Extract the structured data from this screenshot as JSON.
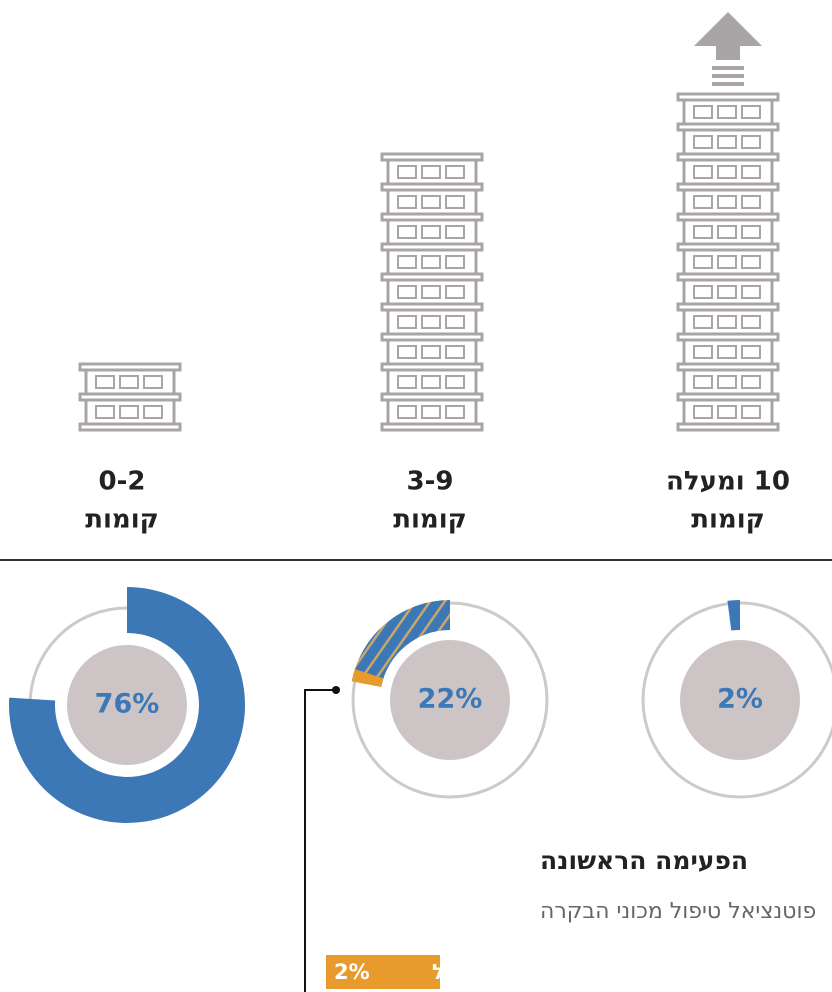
{
  "chart_data": [
    {
      "type": "donut",
      "title": "10 ומעלה",
      "subtitle": "קומות",
      "values": [
        2
      ],
      "value_labels": [
        "2%"
      ],
      "color": "#3b78b5",
      "direction": "ccw"
    },
    {
      "type": "donut",
      "title": "3-9",
      "subtitle": "קומות",
      "values": [
        22
      ],
      "value_labels": [
        "22%"
      ],
      "color": "#3b78b5",
      "pattern": "striped",
      "direction": "ccw",
      "overlay": {
        "name": "בפועל",
        "values": [
          2
        ],
        "value_labels": [
          "2%"
        ],
        "color": "#e89a2c"
      }
    },
    {
      "type": "donut",
      "title": "0-2",
      "subtitle": "קומות",
      "values": [
        76
      ],
      "value_labels": [
        "76%"
      ],
      "color": "#3b78b5",
      "direction": "cw"
    }
  ],
  "annotation": {
    "title": "הפעימה הראשונה",
    "text": "פוטנציאל טיפול מכוני הבקרה"
  }
}
